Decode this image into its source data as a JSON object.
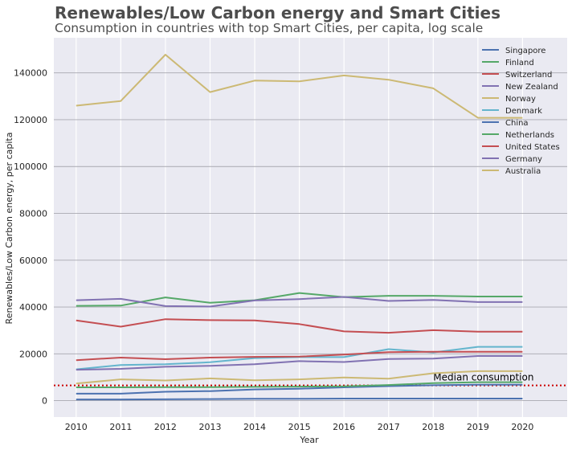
{
  "chart_data": {
    "type": "line",
    "title": "Renewables/Low Carbon energy and Smart Cities",
    "subtitle": "Consumption in countries with top Smart Cities, per capita, log scale",
    "xlabel": "Year",
    "ylabel": "Renewables/Low Carbon energy, per capita",
    "x": [
      2010,
      2011,
      2012,
      2013,
      2014,
      2015,
      2016,
      2017,
      2018,
      2019,
      2020
    ],
    "xlim": [
      2009.5,
      2021
    ],
    "ylim": [
      -7000,
      155000
    ],
    "yticks": [
      0,
      20000,
      40000,
      60000,
      80000,
      100000,
      120000,
      140000
    ],
    "grid": true,
    "legend_position": "top-right",
    "series": [
      {
        "name": "Singapore",
        "color": "#4c72b0",
        "values": [
          500,
          500,
          600,
          700,
          800,
          800,
          900,
          900,
          900,
          900,
          900
        ]
      },
      {
        "name": "Finland",
        "color": "#55a868",
        "values": [
          40500,
          40600,
          44100,
          41800,
          42900,
          46000,
          44200,
          44800,
          44800,
          44500,
          44500
        ]
      },
      {
        "name": "Switzerland",
        "color": "#c44e52",
        "values": [
          34300,
          31600,
          34800,
          34400,
          34300,
          32700,
          29600,
          29000,
          30100,
          29500,
          29500
        ]
      },
      {
        "name": "New Zealand",
        "color": "#8172b2",
        "values": [
          42900,
          43500,
          40400,
          40200,
          42800,
          43400,
          44300,
          42600,
          43000,
          42100,
          42100
        ]
      },
      {
        "name": "Norway",
        "color": "#ccb974",
        "values": [
          126000,
          128000,
          147800,
          131800,
          136700,
          136400,
          138900,
          137100,
          133400,
          120800,
          120800
        ]
      },
      {
        "name": "Denmark",
        "color": "#64b5cd",
        "values": [
          13400,
          15200,
          15600,
          16400,
          18200,
          18600,
          18600,
          22000,
          20600,
          23000,
          23000
        ]
      },
      {
        "name": "China",
        "color": "#4c72b0",
        "values": [
          3000,
          3000,
          3800,
          4100,
          4800,
          5100,
          5700,
          6200,
          6600,
          6800,
          6800
        ]
      },
      {
        "name": "Netherlands",
        "color": "#55a868",
        "values": [
          5700,
          5700,
          5800,
          5800,
          5900,
          6000,
          6100,
          6700,
          7500,
          7900,
          7900
        ]
      },
      {
        "name": "United States",
        "color": "#c44e52",
        "values": [
          17300,
          18400,
          17700,
          18400,
          18700,
          18800,
          19700,
          20700,
          20900,
          20900,
          20900
        ]
      },
      {
        "name": "Germany",
        "color": "#8172b2",
        "values": [
          13200,
          13600,
          14500,
          14900,
          15600,
          16900,
          16500,
          17800,
          18000,
          19100,
          19100
        ]
      },
      {
        "name": "Australia",
        "color": "#ccb974",
        "values": [
          7300,
          9100,
          8600,
          9500,
          8700,
          9100,
          9900,
          9400,
          11700,
          12600,
          12600
        ]
      }
    ],
    "reference_line": {
      "value": 6500,
      "label": "Median consumption",
      "color": "#cc0000"
    }
  }
}
